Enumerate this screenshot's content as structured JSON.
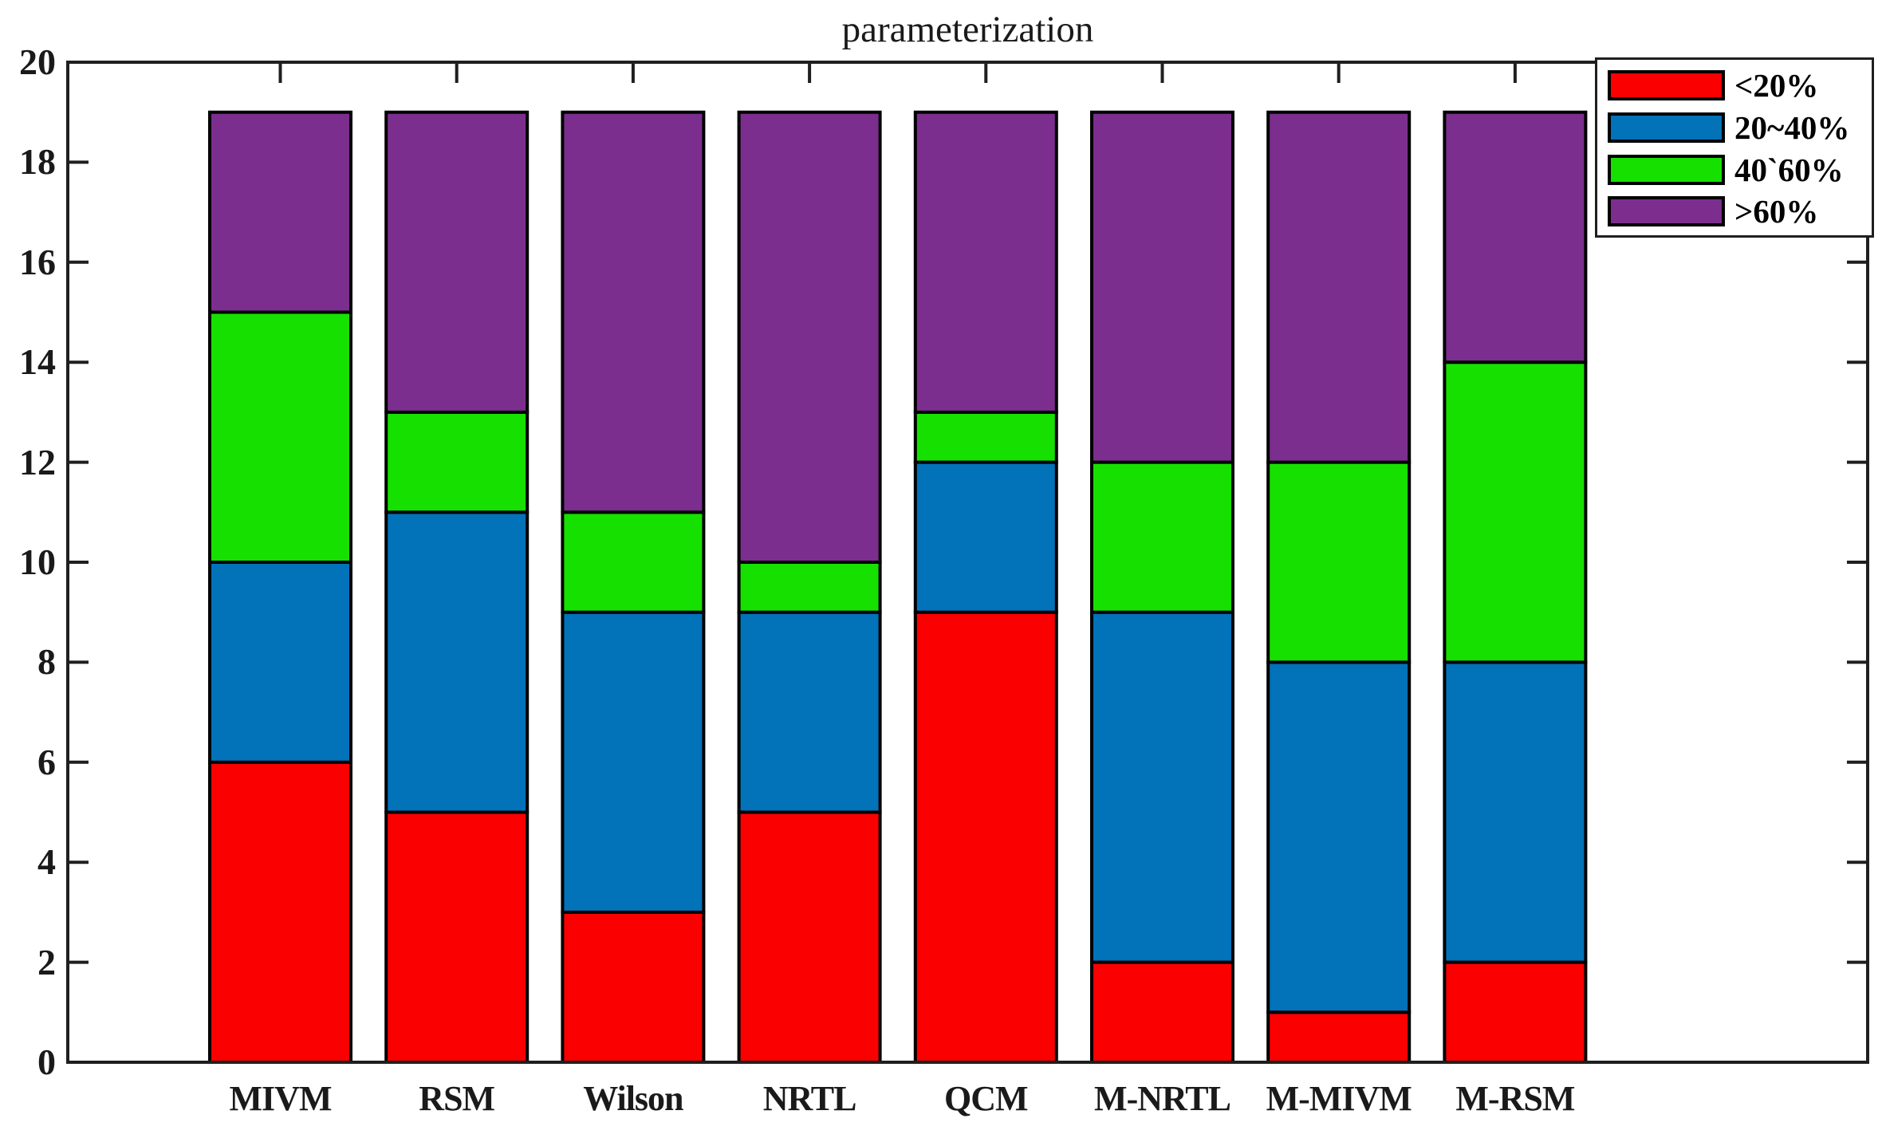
{
  "figure": {
    "background": "#ffffff",
    "frame_color": "#1f1f1f",
    "text_color": "#1a1a1a",
    "bar_outline_color": "#000000"
  },
  "chart_data": {
    "type": "bar",
    "stacked": true,
    "title": "parameterization",
    "xlabel": "",
    "ylabel": "",
    "categories": [
      "MIVM",
      "RSM",
      "Wilson",
      "NRTL",
      "QCM",
      "M-NRTL",
      "M-MIVM",
      "M-RSM"
    ],
    "series": [
      {
        "name": "<20%",
        "color": "#fa0000",
        "values": [
          6,
          5,
          3,
          5,
          9,
          2,
          1,
          2
        ]
      },
      {
        "name": "20~40%",
        "color": "#0272b9",
        "values": [
          4,
          6,
          6,
          4,
          3,
          7,
          7,
          6
        ]
      },
      {
        "name": "40`60%",
        "color": "#16e000",
        "values": [
          5,
          2,
          2,
          1,
          1,
          3,
          4,
          6
        ]
      },
      {
        "name": ">60%",
        "color": "#7b2e8d",
        "values": [
          4,
          6,
          8,
          9,
          6,
          7,
          7,
          5
        ]
      }
    ],
    "stack_totals": [
      19,
      19,
      19,
      19,
      19,
      19,
      19,
      19
    ],
    "ylim": [
      0,
      20
    ],
    "yticks": [
      0,
      2,
      4,
      6,
      8,
      10,
      12,
      14,
      16,
      18,
      20
    ],
    "grid": false,
    "legend_position": "top-right"
  }
}
